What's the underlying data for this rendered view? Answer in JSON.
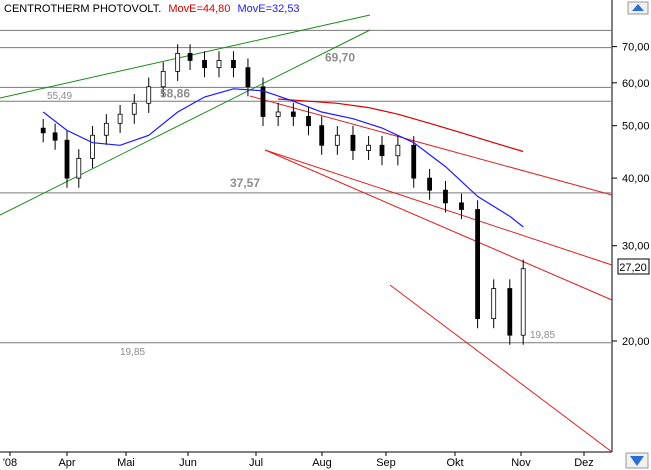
{
  "chart_data": {
    "type": "candlestick",
    "title": "CENTROTHERM PHOTOVOLT.",
    "last_price": "27,20",
    "legend": [
      {
        "label": "MovE=44,80",
        "color": "#d40000"
      },
      {
        "label": "MovE=32,53",
        "color": "#1a1aff"
      }
    ],
    "y_axis": {
      "scale": "log",
      "ylim": [
        12.5,
        78
      ],
      "ticks": [
        "20,00",
        "30,00",
        "40,00",
        "50,00",
        "60,00",
        "70,00"
      ],
      "tick_values": [
        20,
        30,
        40,
        50,
        60,
        70
      ]
    },
    "x_axis": {
      "ticks": [
        "'08",
        "Apr",
        "Mai",
        "Jun",
        "Jul",
        "Aug",
        "Sep",
        "Okt",
        "Nov",
        "Dez"
      ]
    },
    "levels": [
      {
        "value": 75.0,
        "label": ""
      },
      {
        "value": 69.7,
        "label": "69,70"
      },
      {
        "value": 58.86,
        "label": "58,86"
      },
      {
        "value": 55.49,
        "label": "55,49"
      },
      {
        "value": 37.57,
        "label": "37,57"
      },
      {
        "value": 19.85,
        "label": "19,85"
      }
    ],
    "level_labels": [
      {
        "text": "69,70",
        "style": "big"
      },
      {
        "text": "58,86",
        "style": "big"
      },
      {
        "text": "55,49",
        "style": "small"
      },
      {
        "text": "37,57",
        "style": "big"
      },
      {
        "text": "19,85",
        "style": "small"
      },
      {
        "text": "19,85",
        "style": "small"
      }
    ],
    "series": [
      {
        "name": "price",
        "type": "candle",
        "x": [
          "03-17",
          "03-24",
          "03-31",
          "04-07",
          "04-14",
          "04-21",
          "04-28",
          "05-05",
          "05-12",
          "05-19",
          "05-26",
          "06-02",
          "06-09",
          "06-16",
          "06-23",
          "06-30",
          "07-07",
          "07-14",
          "07-21",
          "07-28",
          "08-04",
          "08-11",
          "08-18",
          "08-25",
          "09-01",
          "09-08",
          "09-15",
          "09-22",
          "09-29",
          "10-06",
          "10-13",
          "10-20",
          "10-27",
          "11-03"
        ],
        "close": [
          48.5,
          47.0,
          40.0,
          43.5,
          48.0,
          50.5,
          52.5,
          55.0,
          59.0,
          63.0,
          68.0,
          66.0,
          64.0,
          66.0,
          64.0,
          59.0,
          52.0,
          53.0,
          52.0,
          50.0,
          46.0,
          48.0,
          45.0,
          46.0,
          44.0,
          46.0,
          40.0,
          38.0,
          36.0,
          35.0,
          22.0,
          25.0,
          20.5,
          27.2
        ]
      },
      {
        "name": "MovE=44,80",
        "type": "line",
        "x": [
          "07-14",
          "07-28",
          "08-11",
          "08-25",
          "09-08",
          "09-22",
          "10-06",
          "10-20",
          "11-03"
        ],
        "values": [
          56.0,
          55.5,
          55.0,
          54.0,
          52.5,
          50.5,
          48.5,
          46.5,
          44.8
        ]
      },
      {
        "name": "MovE=32,53",
        "type": "line",
        "x": [
          "03-17",
          "03-31",
          "04-14",
          "04-28",
          "05-12",
          "05-26",
          "06-09",
          "06-23",
          "07-07",
          "07-21",
          "08-04",
          "08-18",
          "09-01",
          "09-15",
          "09-29",
          "10-13",
          "10-27",
          "11-03"
        ],
        "values": [
          53.0,
          49.0,
          46.5,
          46.0,
          48.0,
          53.0,
          56.5,
          58.5,
          58.0,
          55.5,
          53.0,
          51.5,
          49.5,
          46.5,
          42.0,
          37.0,
          34.0,
          32.5
        ]
      }
    ]
  }
}
